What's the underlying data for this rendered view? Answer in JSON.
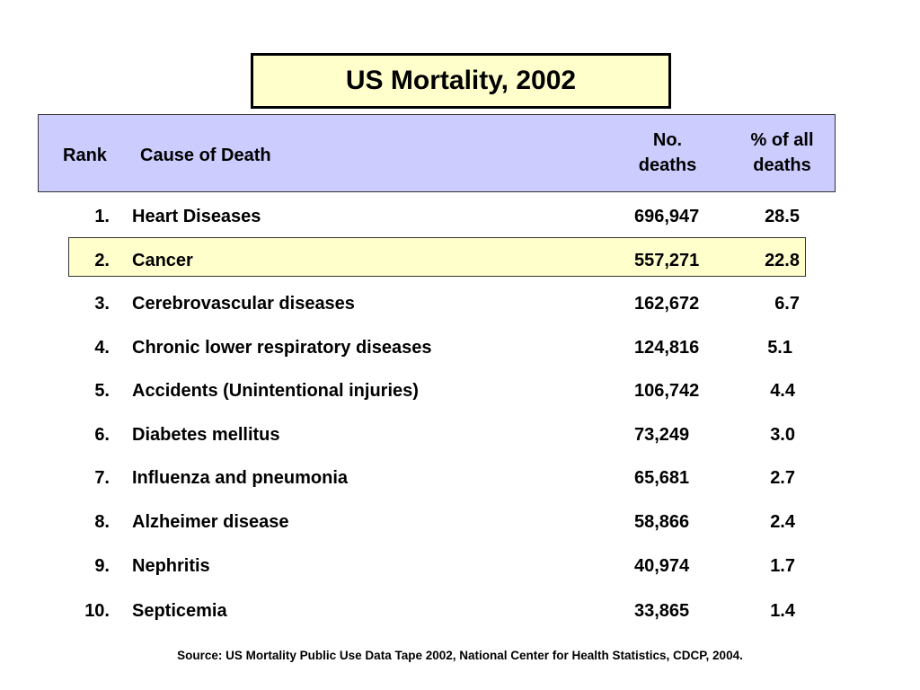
{
  "title": "US Mortality, 2002",
  "headers": {
    "rank": "Rank",
    "cause": "Cause of Death",
    "deaths_line1": "No.",
    "deaths_line2": "deaths",
    "pct_line1": "% of all",
    "pct_line2": "deaths"
  },
  "rows": [
    {
      "rank": "1.",
      "cause": "Heart Diseases",
      "deaths": "696,947",
      "pct": "28.5"
    },
    {
      "rank": "2.",
      "cause": "Cancer",
      "deaths": "557,271",
      "pct": "22.8"
    },
    {
      "rank": "3.",
      "cause": "Cerebrovascular diseases",
      "deaths": "162,672",
      "pct": "6.7"
    },
    {
      "rank": "4.",
      "cause": "Chronic lower respiratory diseases",
      "deaths": "124,816",
      "pct": "5.1"
    },
    {
      "rank": "5.",
      "cause": "Accidents (Unintentional injuries)",
      "deaths": "106,742",
      "pct": "4.4"
    },
    {
      "rank": "6.",
      "cause": "Diabetes mellitus",
      "deaths": "73,249",
      "pct": "3.0"
    },
    {
      "rank": "7.",
      "cause": "Influenza and pneumonia",
      "deaths": "65,681",
      "pct": "2.7"
    },
    {
      "rank": "8.",
      "cause": "Alzheimer disease",
      "deaths": "58,866",
      "pct": "2.4"
    },
    {
      "rank": "9.",
      "cause": "Nephritis",
      "deaths": "40,974",
      "pct": "1.7"
    },
    {
      "rank": "10.",
      "cause": "Septicemia",
      "deaths": "33,865",
      "pct": "1.4"
    }
  ],
  "highlighted_rank": "2.",
  "colors": {
    "title_bg": "#ffffcc",
    "header_bg": "#ccccff",
    "highlight_bg": "#ffffcc"
  },
  "source": "Source:   US Mortality Public Use Data Tape 2002, National Center for Health Statistics, CDCP, 2004."
}
